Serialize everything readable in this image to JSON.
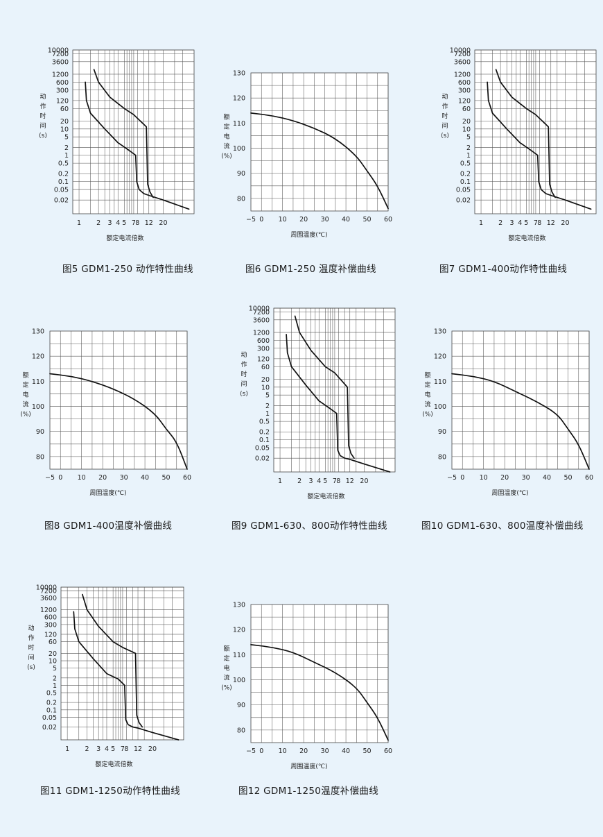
{
  "chart_data": [
    {
      "id": "c5",
      "kind": "trip",
      "caption": "图5 GDM1-250 动作特性曲线",
      "type": "line",
      "ylabel": [
        "动",
        "作",
        "时",
        "间",
        "(s)"
      ],
      "xlabel": "额定电流倍数",
      "yticks": [
        "10000",
        "7200",
        "3600",
        "1200",
        "600",
        "300",
        "120",
        "60",
        "20",
        "10",
        "5",
        "2",
        "1",
        "0.5",
        "0.2",
        "0.1",
        "0.05",
        "0.02"
      ],
      "xticks": [
        "1",
        "2",
        "3",
        "4",
        "5",
        "7",
        "8",
        "12",
        "20"
      ],
      "series": [
        {
          "points": [
            [
              1.25,
              600
            ],
            [
              1.3,
              120
            ],
            [
              1.5,
              40
            ],
            [
              2.5,
              10
            ],
            [
              4,
              3
            ],
            [
              6,
              1.5
            ],
            [
              7.5,
              1
            ],
            [
              7.8,
              0.1
            ],
            [
              8.5,
              0.05
            ],
            [
              10,
              0.035
            ],
            [
              12,
              0.03
            ],
            [
              20,
              0.02
            ],
            [
              50,
              0.009
            ]
          ]
        },
        {
          "points": [
            [
              1.7,
              1800
            ],
            [
              2,
              600
            ],
            [
              3,
              160
            ],
            [
              5,
              60
            ],
            [
              7,
              35
            ],
            [
              11,
              12
            ],
            [
              11.5,
              0.08
            ],
            [
              12.5,
              0.04
            ],
            [
              14,
              0.025
            ]
          ]
        }
      ]
    },
    {
      "id": "c6",
      "kind": "temp",
      "caption": "图6 GDM1-250 温度补偿曲线",
      "type": "line",
      "ylabel": [
        "额",
        "定",
        "电",
        "流",
        "(%)"
      ],
      "xlabel": "周围温度(℃)",
      "yticks": [
        "130",
        "120",
        "110",
        "100",
        "90",
        "80"
      ],
      "xticks": [
        "−5",
        "0",
        "10",
        "20",
        "30",
        "40",
        "50",
        "60"
      ],
      "series": [
        {
          "points": [
            [
              -5,
              114
            ],
            [
              5,
              113
            ],
            [
              15,
              111
            ],
            [
              25,
              108
            ],
            [
              35,
              104
            ],
            [
              45,
              97
            ],
            [
              50,
              91
            ],
            [
              55,
              85
            ],
            [
              60,
              76
            ]
          ]
        }
      ]
    },
    {
      "id": "c7",
      "kind": "trip",
      "caption": "图7 GDM1-400动作特性曲线",
      "type": "line",
      "ylabel": [
        "动",
        "作",
        "时",
        "间",
        "(s)"
      ],
      "xlabel": "额定电流倍数",
      "yticks": [
        "10000",
        "7200",
        "3600",
        "1200",
        "600",
        "300",
        "120",
        "60",
        "20",
        "10",
        "5",
        "2",
        "1",
        "0.5",
        "0.2",
        "0.1",
        "0.05",
        "0.02"
      ],
      "xticks": [
        "1",
        "2",
        "3",
        "4",
        "5",
        "7",
        "8",
        "12",
        "20"
      ],
      "series": [
        {
          "points": [
            [
              1.25,
              600
            ],
            [
              1.3,
              120
            ],
            [
              1.5,
              40
            ],
            [
              2.5,
              10
            ],
            [
              4,
              3
            ],
            [
              6,
              1.5
            ],
            [
              7.5,
              1
            ],
            [
              7.8,
              0.1
            ],
            [
              8.5,
              0.05
            ],
            [
              10,
              0.035
            ],
            [
              12,
              0.03
            ],
            [
              20,
              0.02
            ],
            [
              50,
              0.009
            ]
          ]
        },
        {
          "points": [
            [
              1.7,
              1800
            ],
            [
              2,
              600
            ],
            [
              3,
              160
            ],
            [
              5,
              60
            ],
            [
              7,
              35
            ],
            [
              11,
              12
            ],
            [
              11.5,
              0.08
            ],
            [
              12.5,
              0.04
            ],
            [
              14,
              0.025
            ]
          ]
        }
      ]
    },
    {
      "id": "c8",
      "kind": "temp",
      "caption": "图8 GDM1-400温度补偿曲线",
      "type": "line",
      "ylabel": [
        "额",
        "定",
        "电",
        "流",
        "(%)"
      ],
      "xlabel": "周围温度(℃)",
      "yticks": [
        "130",
        "120",
        "110",
        "100",
        "90",
        "80"
      ],
      "xticks": [
        "−5",
        "0",
        "10",
        "20",
        "30",
        "40",
        "50",
        "60"
      ],
      "series": [
        {
          "points": [
            [
              -5,
              113
            ],
            [
              5,
              112
            ],
            [
              15,
              110
            ],
            [
              25,
              107
            ],
            [
              35,
              103
            ],
            [
              45,
              97
            ],
            [
              50,
              91
            ],
            [
              55,
              86
            ],
            [
              60,
              75
            ]
          ]
        }
      ]
    },
    {
      "id": "c9",
      "kind": "trip",
      "caption": "图9 GDM1-630、800动作特性曲线",
      "type": "line",
      "ylabel": [
        "动",
        "作",
        "时",
        "间",
        "(s)"
      ],
      "xlabel": "额定电流倍数",
      "yticks": [
        "10000",
        "7200",
        "3600",
        "1200",
        "600",
        "300",
        "120",
        "60",
        "20",
        "10",
        "5",
        "2",
        "1",
        "0.5",
        "0.2",
        "0.1",
        "0.05",
        "0.02"
      ],
      "xticks": [
        "1",
        "2",
        "3",
        "4",
        "5",
        "7",
        "8",
        "12",
        "20"
      ],
      "series": [
        {
          "points": [
            [
              1.25,
              1000
            ],
            [
              1.3,
              200
            ],
            [
              1.5,
              60
            ],
            [
              2.5,
              12
            ],
            [
              4,
              3
            ],
            [
              6,
              1.5
            ],
            [
              7.5,
              1
            ],
            [
              7.8,
              0.04
            ],
            [
              8.5,
              0.025
            ],
            [
              10,
              0.02
            ],
            [
              12,
              0.018
            ],
            [
              20,
              0.012
            ],
            [
              50,
              0.006
            ]
          ]
        },
        {
          "points": [
            [
              1.7,
              5000
            ],
            [
              2,
              1200
            ],
            [
              3,
              250
            ],
            [
              5,
              60
            ],
            [
              7,
              35
            ],
            [
              11,
              10
            ],
            [
              11.5,
              0.06
            ],
            [
              12.5,
              0.03
            ],
            [
              14,
              0.02
            ]
          ]
        }
      ]
    },
    {
      "id": "c10",
      "kind": "temp",
      "caption": "图10 GDM1-630、800温度补偿曲线",
      "type": "line",
      "ylabel": [
        "额",
        "定",
        "电",
        "流",
        "(%)"
      ],
      "xlabel": "周围温度(℃)",
      "yticks": [
        "130",
        "120",
        "110",
        "100",
        "90",
        "80"
      ],
      "xticks": [
        "−5",
        "0",
        "10",
        "20",
        "30",
        "40",
        "50",
        "60"
      ],
      "series": [
        {
          "points": [
            [
              -5,
              113
            ],
            [
              5,
              112
            ],
            [
              15,
              110
            ],
            [
              25,
              106
            ],
            [
              35,
              102
            ],
            [
              45,
              97
            ],
            [
              50,
              91
            ],
            [
              55,
              85
            ],
            [
              60,
              75
            ]
          ]
        }
      ]
    },
    {
      "id": "c11",
      "kind": "trip",
      "caption": "图11 GDM1-1250动作特性曲线",
      "type": "line",
      "ylabel": [
        "动",
        "作",
        "时",
        "间",
        "(s)"
      ],
      "xlabel": "额定电流倍数",
      "yticks": [
        "10000",
        "7200",
        "3600",
        "1200",
        "600",
        "300",
        "120",
        "60",
        "20",
        "10",
        "5",
        "2",
        "1",
        "0.5",
        "0.2",
        "0.1",
        "0.05",
        "0.02"
      ],
      "xticks": [
        "1",
        "2",
        "3",
        "4",
        "5",
        "7",
        "8",
        "12",
        "20"
      ],
      "series": [
        {
          "points": [
            [
              1.25,
              1000
            ],
            [
              1.3,
              200
            ],
            [
              1.5,
              60
            ],
            [
              2.5,
              12
            ],
            [
              4,
              3
            ],
            [
              6,
              1.8
            ],
            [
              7.5,
              1
            ],
            [
              7.8,
              0.04
            ],
            [
              8.5,
              0.025
            ],
            [
              10,
              0.02
            ],
            [
              12,
              0.018
            ],
            [
              20,
              0.012
            ],
            [
              50,
              0.006
            ]
          ]
        },
        {
          "points": [
            [
              1.7,
              5000
            ],
            [
              2,
              1200
            ],
            [
              3,
              250
            ],
            [
              5,
              60
            ],
            [
              7,
              35
            ],
            [
              11,
              20
            ],
            [
              11.5,
              0.06
            ],
            [
              12.5,
              0.03
            ],
            [
              14,
              0.02
            ]
          ]
        }
      ]
    },
    {
      "id": "c12",
      "kind": "temp",
      "caption": "图12 GDM1-1250温度补偿曲线",
      "type": "line",
      "ylabel": [
        "额",
        "定",
        "电",
        "流",
        "(%)"
      ],
      "xlabel": "周围温度(℃)",
      "yticks": [
        "130",
        "120",
        "110",
        "100",
        "90",
        "80"
      ],
      "xticks": [
        "−5",
        "0",
        "10",
        "20",
        "30",
        "40",
        "50",
        "60"
      ],
      "series": [
        {
          "points": [
            [
              -5,
              114
            ],
            [
              5,
              113
            ],
            [
              15,
              111
            ],
            [
              25,
              107
            ],
            [
              35,
              103
            ],
            [
              45,
              97
            ],
            [
              50,
              91
            ],
            [
              55,
              85
            ],
            [
              60,
              76
            ]
          ]
        }
      ]
    }
  ]
}
